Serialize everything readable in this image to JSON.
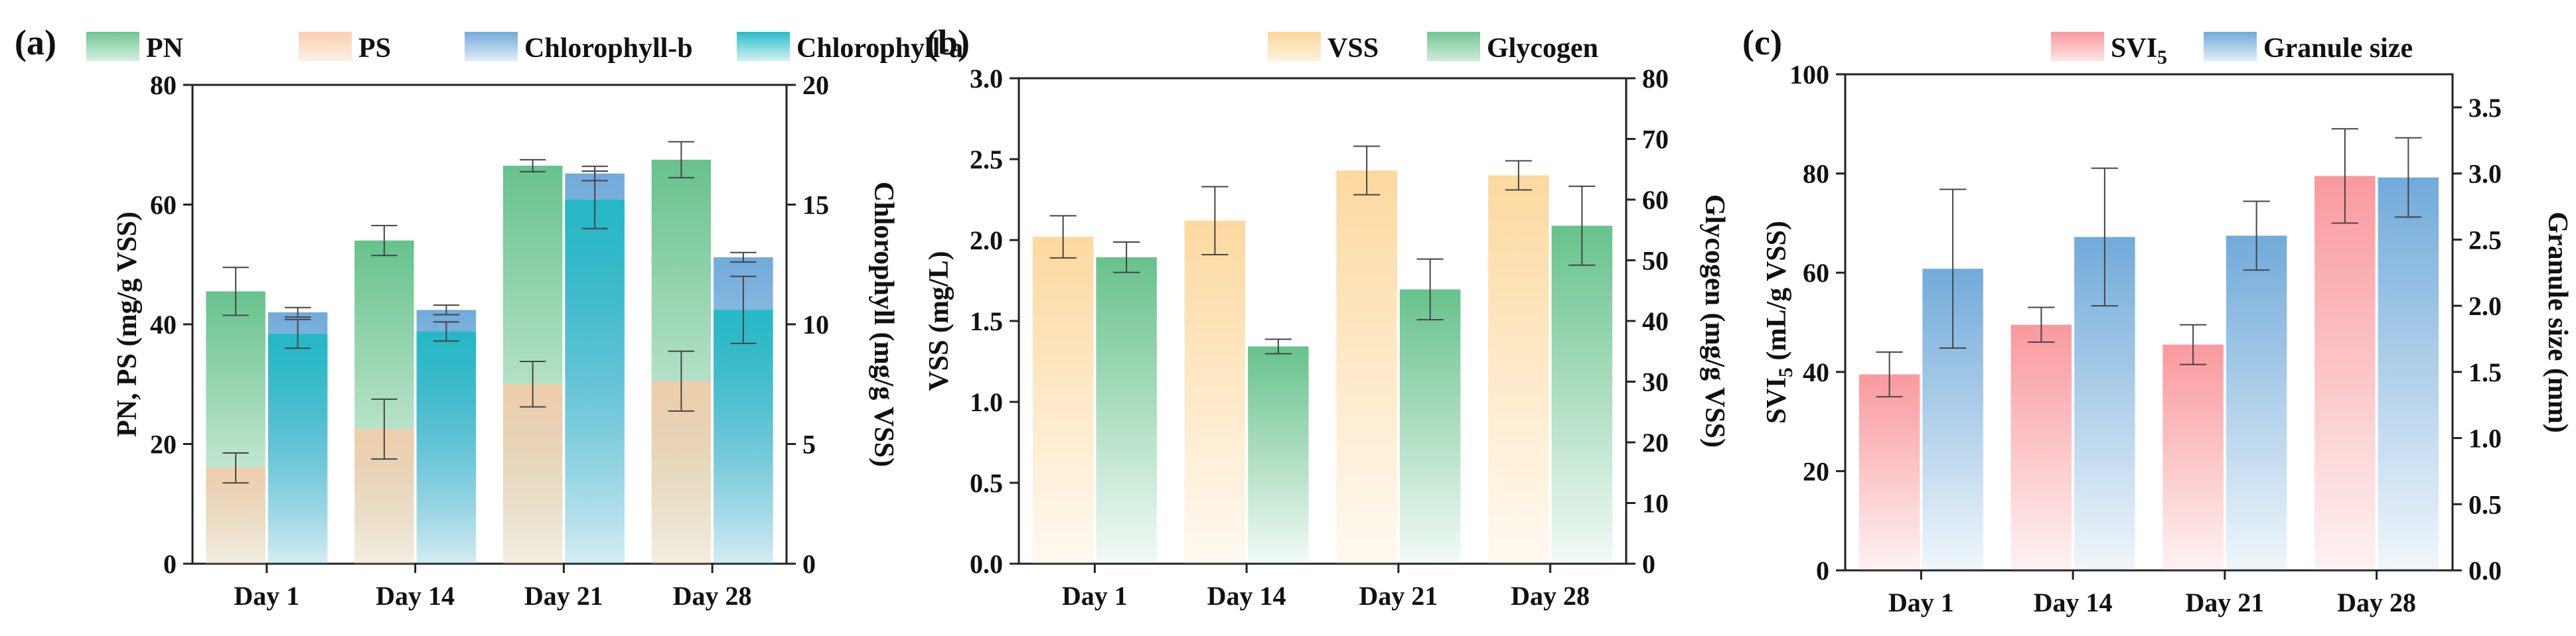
{
  "colors": {
    "PN": "#5fbf86",
    "PS": "#f9c9a6",
    "Chlorophyll-b": "#6aa6d8",
    "Chlorophyll-a": "#1fb9c4",
    "VSS": "#fcd28e",
    "Glycogen": "#5fbf86",
    "SVI5": "#f99498",
    "Granule size": "#6aa6d8"
  },
  "chart_data": [
    {
      "panel": "(a)",
      "type": "bar",
      "categories": [
        "Day 1",
        "Day 14",
        "Day 21",
        "Day 28"
      ],
      "legend": [
        "PN",
        "PS",
        "Chlorophyll-b",
        "Chlorophyll-a"
      ],
      "ylabel": "PN, PS (mg/g VSS)",
      "y2label": "Chlorophyll (mg/g VSS)",
      "ylim": [
        0,
        80
      ],
      "y2lim": [
        0,
        20
      ],
      "yticks": [
        "0",
        "20",
        "40",
        "60",
        "80"
      ],
      "y2ticks": [
        "0",
        "5",
        "10",
        "15",
        "20"
      ],
      "series": [
        {
          "name": "PN",
          "axis": "left",
          "stack": "left",
          "values": [
            45.5,
            54,
            66.5,
            67.5
          ],
          "errors": [
            4,
            2.5,
            1,
            3
          ]
        },
        {
          "name": "PS",
          "axis": "left",
          "stack": "left",
          "values": [
            16,
            22.5,
            30,
            30.5
          ],
          "errors": [
            2.5,
            5,
            3.8,
            5
          ]
        },
        {
          "name": "Chlorophyll-b",
          "axis": "right",
          "stack": "right",
          "values": [
            10.5,
            10.6,
            16.3,
            12.8
          ],
          "errors": [
            0.2,
            0.2,
            0.3,
            0.2
          ]
        },
        {
          "name": "Chlorophyll-a",
          "axis": "right",
          "stack": "right",
          "values": [
            9.6,
            9.7,
            15.2,
            10.6
          ],
          "errors": [
            0.6,
            0.4,
            1.2,
            1.4
          ]
        }
      ]
    },
    {
      "panel": "(b)",
      "type": "bar",
      "categories": [
        "Day 1",
        "Day 14",
        "Day 21",
        "Day 28"
      ],
      "legend": [
        "VSS",
        "Glycogen"
      ],
      "ylabel": "VSS (mg/L)",
      "y2label": "Glycogen (mg/g VSS)",
      "ylim": [
        0,
        3.0
      ],
      "y2lim": [
        0,
        80
      ],
      "yticks": [
        "0.0",
        "0.5",
        "1.0",
        "1.5",
        "2.0",
        "2.5",
        "3.0"
      ],
      "y2ticks": [
        "0",
        "10",
        "20",
        "30",
        "40",
        "50",
        "60",
        "70",
        "80"
      ],
      "series": [
        {
          "name": "VSS",
          "axis": "left",
          "values": [
            2.02,
            2.12,
            2.43,
            2.4
          ],
          "errors": [
            0.13,
            0.21,
            0.15,
            0.09
          ]
        },
        {
          "name": "Glycogen",
          "axis": "right",
          "values": [
            50.5,
            35.8,
            45.2,
            55.7
          ],
          "errors": [
            2.5,
            1.2,
            5,
            6.5
          ]
        }
      ]
    },
    {
      "panel": "(c)",
      "type": "bar",
      "categories": [
        "Day 1",
        "Day 14",
        "Day 21",
        "Day 28"
      ],
      "legend": [
        "SVI",
        "Granule size"
      ],
      "legend_subscript": "5",
      "ylabel": "SVI",
      "ylabel_subscript": "5",
      "ylabel_suffix": " (mL/g VSS)",
      "y2label": "Granule size (mm)",
      "ylim": [
        0,
        100
      ],
      "y2lim": [
        0,
        3.75
      ],
      "yticks": [
        "0",
        "20",
        "40",
        "60",
        "80",
        "100"
      ],
      "y2ticks": [
        "0.0",
        "0.5",
        "1.0",
        "1.5",
        "2.0",
        "2.5",
        "3.0",
        "3.5"
      ],
      "series": [
        {
          "name": "SVI5",
          "axis": "left",
          "values": [
            39.5,
            49.5,
            45.5,
            79.5
          ],
          "errors": [
            4.5,
            3.5,
            4,
            9.5
          ]
        },
        {
          "name": "Granule size",
          "axis": "right",
          "values": [
            2.28,
            2.52,
            2.53,
            2.97
          ],
          "errors": [
            0.6,
            0.52,
            0.26,
            0.3
          ]
        }
      ]
    }
  ]
}
